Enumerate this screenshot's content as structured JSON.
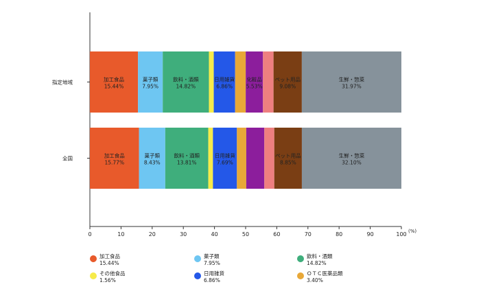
{
  "chart_data": {
    "type": "bar",
    "orientation": "horizontal",
    "stacked": true,
    "x_unit_label": "(%)",
    "xlim": [
      0,
      100
    ],
    "x_ticks": [
      0,
      10,
      20,
      30,
      40,
      50,
      60,
      70,
      80,
      90,
      100
    ],
    "categories": [
      "指定地域",
      "全国"
    ],
    "series": [
      {
        "name": "加工食品",
        "color": "#E85A2B",
        "values": [
          15.44,
          15.77
        ],
        "labels": [
          "15.44%",
          "15.77%"
        ]
      },
      {
        "name": "菓子類",
        "color": "#6EC6F2",
        "values": [
          7.95,
          8.43
        ],
        "labels": [
          "7.95%",
          "8.43%"
        ]
      },
      {
        "name": "飲料・酒類",
        "color": "#3FAE7C",
        "values": [
          14.82,
          13.81
        ],
        "labels": [
          "14.82%",
          "13.81%"
        ]
      },
      {
        "name": "その他食品",
        "color": "#F6EB4A",
        "values": [
          1.56,
          1.5
        ],
        "labels": [
          "",
          ""
        ]
      },
      {
        "name": "日用雑貨",
        "color": "#2458E8",
        "values": [
          6.86,
          7.69
        ],
        "labels": [
          "6.86%",
          "7.69%"
        ]
      },
      {
        "name": "ＯＴＣ医薬品類",
        "color": "#E8A838",
        "values": [
          3.4,
          3.0
        ],
        "labels": [
          "",
          ""
        ]
      },
      {
        "name": "化粧品",
        "color": "#8C1E9C",
        "values": [
          5.53,
          5.8
        ],
        "labels": [
          "5.53%",
          ""
        ]
      },
      {
        "name": "",
        "color": "#EE7F80",
        "values": [
          3.4,
          3.2
        ],
        "labels": [
          "",
          ""
        ]
      },
      {
        "name": "ペット用品",
        "color": "#7A3E14",
        "values": [
          9.08,
          8.85
        ],
        "labels": [
          "9.08%",
          "8.85%"
        ]
      },
      {
        "name": "生鮮・惣菜",
        "color": "#86929B",
        "values": [
          31.97,
          32.1
        ],
        "labels": [
          "31.97%",
          "32.10%"
        ]
      }
    ]
  },
  "legend": [
    {
      "name": "加工食品",
      "value": "15.44%",
      "color": "#E85A2B"
    },
    {
      "name": "菓子類",
      "value": "7.95%",
      "color": "#6EC6F2"
    },
    {
      "name": "飲料・酒類",
      "value": "14.82%",
      "color": "#3FAE7C"
    },
    {
      "name": "その他食品",
      "value": "1.56%",
      "color": "#F6EB4A"
    },
    {
      "name": "日用雑貨",
      "value": "6.86%",
      "color": "#2458E8"
    },
    {
      "name": "ＯＴＣ医薬品類",
      "value": "3.40%",
      "color": "#E8A838"
    }
  ]
}
